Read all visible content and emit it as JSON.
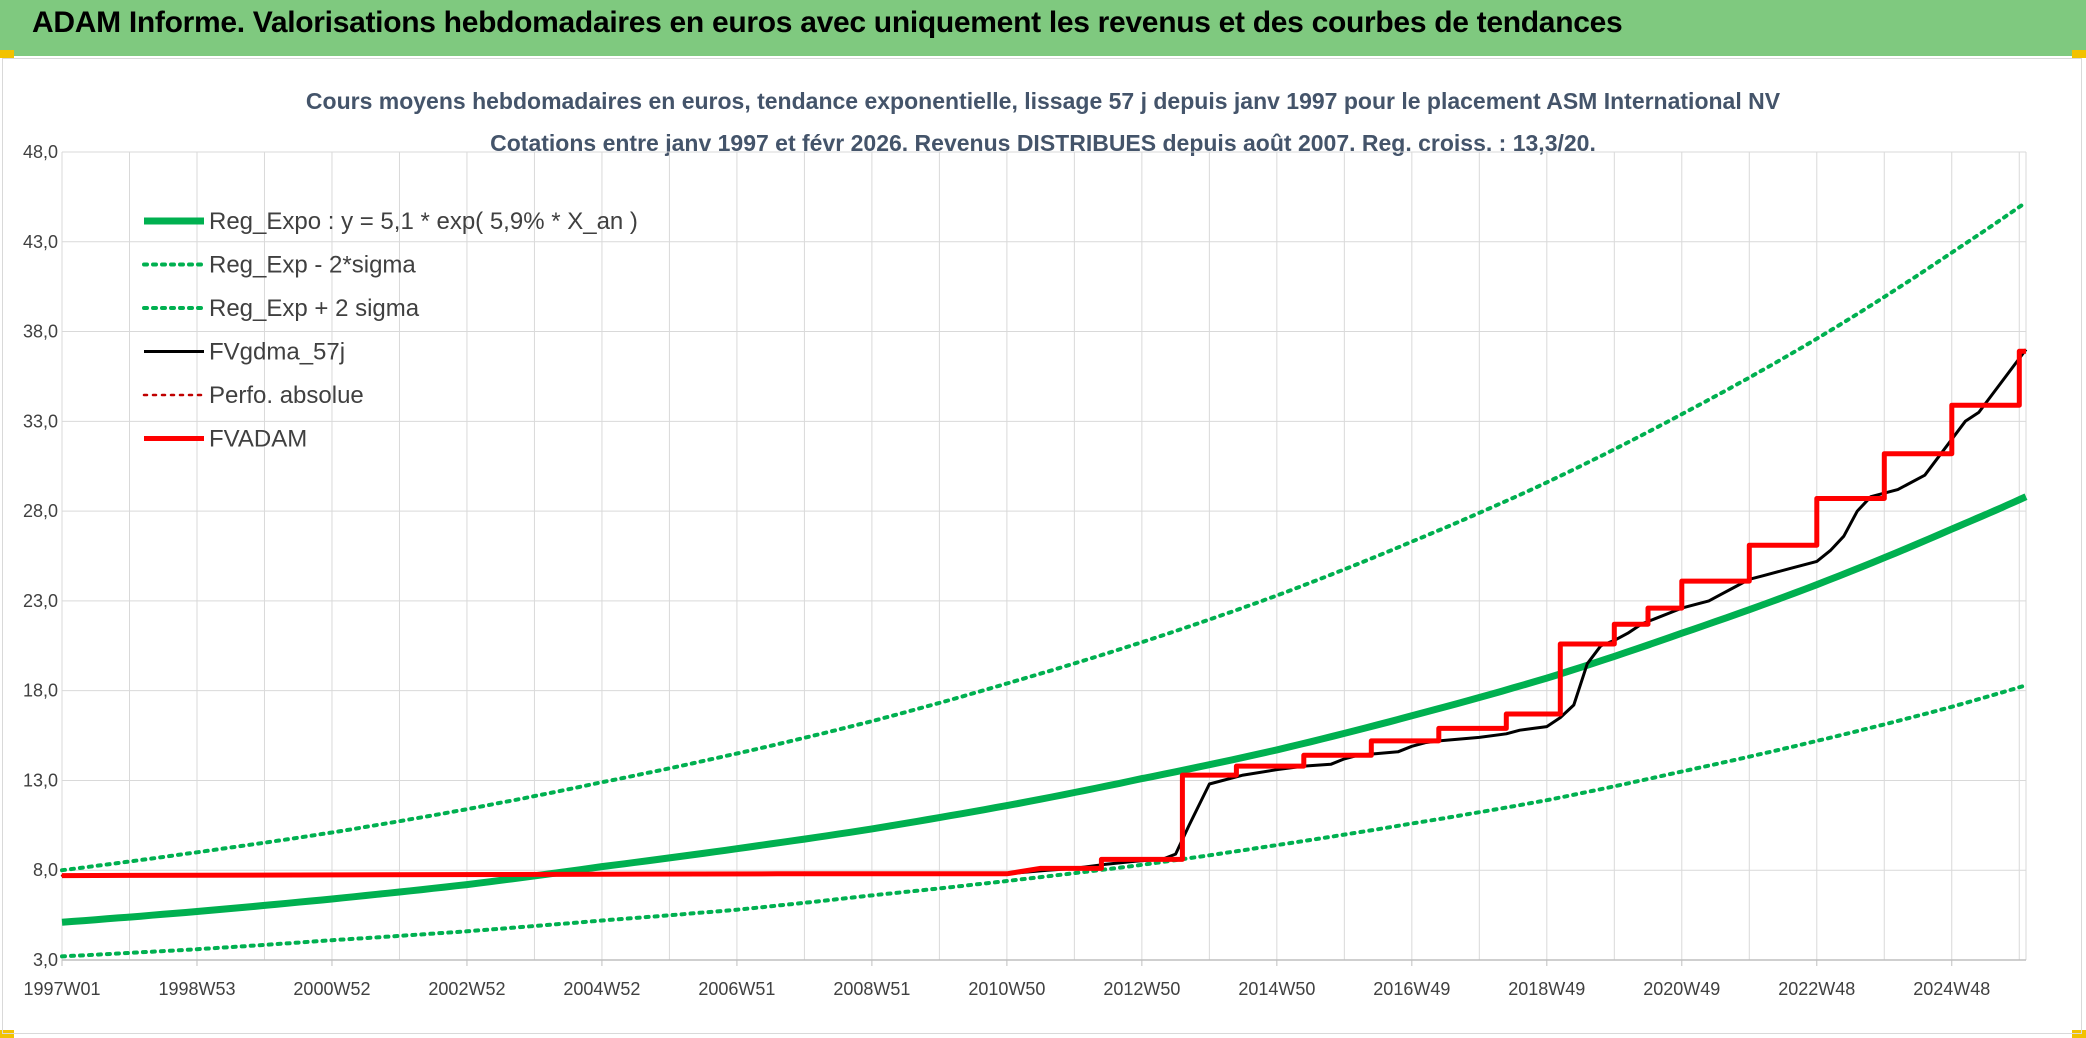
{
  "banner": {
    "title": "ADAM Informe. Valorisations hebdomadaires en euros avec uniquement les revenus et des courbes de tendances"
  },
  "colors": {
    "banner_bg": "#7fc97f",
    "reg_expo": "#00b050",
    "fvgdma": "#000000",
    "fvadam": "#ff0000",
    "perfo": "#c00000",
    "grid": "#d9d9d9",
    "subtitle": "#44546a"
  },
  "chart_data": {
    "type": "line",
    "title_line1": "Cours moyens hebdomadaires en euros, tendance exponentielle, lissage 57 j depuis janv 1997 pour le placement ASM International NV",
    "title_line2": "Cotations entre janv 1997 et févr 2026. Revenus DISTRIBUES depuis août 2007. Reg. croiss. : 13,3/20.",
    "xlabel": "",
    "ylabel": "",
    "x_range_years": [
      0,
      29.1
    ],
    "ylim": [
      3.0,
      48.0
    ],
    "y_ticks": [
      "3,0",
      "8,0",
      "13,0",
      "18,0",
      "23,0",
      "28,0",
      "33,0",
      "38,0",
      "43,0",
      "48,0"
    ],
    "x_ticks": [
      {
        "label": "1997W01",
        "year": 0.0
      },
      {
        "label": "1998W53",
        "year": 2.0
      },
      {
        "label": "2000W52",
        "year": 4.0
      },
      {
        "label": "2002W52",
        "year": 6.0
      },
      {
        "label": "2004W52",
        "year": 8.0
      },
      {
        "label": "2006W51",
        "year": 10.0
      },
      {
        "label": "2008W51",
        "year": 12.0
      },
      {
        "label": "2010W50",
        "year": 14.0
      },
      {
        "label": "2012W50",
        "year": 16.0
      },
      {
        "label": "2014W50",
        "year": 18.0
      },
      {
        "label": "2016W49",
        "year": 20.0
      },
      {
        "label": "2018W49",
        "year": 22.0
      },
      {
        "label": "2020W49",
        "year": 24.0
      },
      {
        "label": "2022W48",
        "year": 26.0
      },
      {
        "label": "2024W48",
        "year": 28.0
      }
    ],
    "series": [
      {
        "name": "Reg_Expo : y = 5,1 * exp( 5,9% *  X_an )",
        "style": "solid-thick",
        "color": "#00b050",
        "x": [
          0,
          2,
          4,
          6,
          8,
          10,
          12,
          14,
          16,
          18,
          20,
          22,
          24,
          26,
          28,
          29.1
        ],
        "y": [
          5.1,
          5.7,
          6.4,
          7.2,
          8.2,
          9.2,
          10.3,
          11.6,
          13.1,
          14.7,
          16.6,
          18.7,
          21.2,
          23.9,
          27.0,
          28.8
        ]
      },
      {
        "name": "Reg_Exp - 2*sigma",
        "style": "dotted",
        "color": "#00b050",
        "x": [
          0,
          2,
          4,
          6,
          8,
          10,
          12,
          14,
          16,
          18,
          20,
          22,
          24,
          26,
          28,
          29.1
        ],
        "y": [
          3.2,
          3.6,
          4.1,
          4.6,
          5.2,
          5.8,
          6.6,
          7.4,
          8.3,
          9.4,
          10.6,
          11.9,
          13.5,
          15.2,
          17.1,
          18.3
        ]
      },
      {
        "name": "Reg_Exp + 2 sigma",
        "style": "dotted",
        "color": "#00b050",
        "x": [
          0,
          2,
          4,
          6,
          8,
          10,
          12,
          14,
          16,
          18,
          20,
          22,
          24,
          26,
          28,
          29.1
        ],
        "y": [
          8.0,
          9.0,
          10.1,
          11.4,
          12.9,
          14.5,
          16.3,
          18.4,
          20.7,
          23.3,
          26.3,
          29.6,
          33.4,
          37.6,
          42.4,
          45.2
        ]
      },
      {
        "name": "FVgdma_57j",
        "style": "solid",
        "color": "#000000",
        "x": [
          0,
          10.6,
          14.0,
          14.6,
          15.0,
          15.4,
          15.9,
          16.3,
          16.5,
          16.7,
          17.0,
          17.5,
          18.0,
          18.4,
          18.8,
          19.0,
          19.2,
          19.5,
          19.8,
          20.0,
          20.2,
          20.4,
          21.0,
          21.4,
          21.6,
          21.8,
          22.0,
          22.2,
          22.4,
          22.6,
          22.8,
          23.0,
          23.2,
          23.4,
          23.6,
          24.0,
          24.4,
          24.6,
          24.8,
          25.0,
          25.2,
          25.6,
          26.0,
          26.2,
          26.4,
          26.6,
          26.8,
          27.2,
          27.6,
          28.2,
          28.4,
          28.6,
          29.1
        ],
        "y": [
          7.7,
          7.8,
          7.8,
          8.0,
          8.1,
          8.3,
          8.5,
          8.6,
          8.9,
          10.5,
          12.8,
          13.3,
          13.6,
          13.8,
          13.9,
          14.2,
          14.4,
          14.5,
          14.6,
          14.9,
          15.1,
          15.2,
          15.4,
          15.6,
          15.8,
          15.9,
          16.0,
          16.5,
          17.2,
          19.5,
          20.5,
          20.8,
          21.2,
          21.7,
          22.0,
          22.6,
          23.0,
          23.4,
          23.8,
          24.2,
          24.4,
          24.8,
          25.2,
          25.8,
          26.6,
          28.0,
          28.8,
          29.2,
          30.0,
          33.0,
          33.5,
          34.5,
          37.0
        ]
      },
      {
        "name": "Perfo. absolue",
        "style": "dotted",
        "color": "#c00000",
        "x": [
          0,
          10.6,
          14.0,
          14.5,
          15.4,
          15.4,
          16.6,
          16.6,
          17.4,
          17.4,
          18.4,
          18.4,
          19.4,
          19.4,
          20.4,
          20.4,
          21.4,
          21.4,
          22.2,
          22.2,
          23.0,
          23.0,
          23.5,
          23.5,
          24.0,
          24.0,
          25.0,
          25.0,
          26.0,
          26.0,
          27.0,
          27.0,
          28.0,
          28.0,
          29.0,
          29.0,
          29.1
        ],
        "y": [
          7.7,
          7.8,
          7.8,
          8.1,
          8.1,
          8.6,
          8.6,
          13.3,
          13.3,
          13.8,
          13.8,
          14.4,
          14.4,
          15.2,
          15.2,
          15.9,
          15.9,
          16.7,
          16.7,
          20.6,
          20.6,
          21.7,
          21.7,
          22.6,
          22.6,
          24.1,
          24.1,
          26.1,
          26.1,
          28.7,
          28.7,
          31.2,
          31.2,
          33.9,
          33.9,
          36.9,
          36.9
        ]
      },
      {
        "name": "FVADAM",
        "style": "solid-thick",
        "color": "#ff0000",
        "x": [
          0,
          10.6,
          14.0,
          14.5,
          15.4,
          15.4,
          16.6,
          16.6,
          17.4,
          17.4,
          18.4,
          18.4,
          19.4,
          19.4,
          20.4,
          20.4,
          21.4,
          21.4,
          22.2,
          22.2,
          23.0,
          23.0,
          23.5,
          23.5,
          24.0,
          24.0,
          25.0,
          25.0,
          26.0,
          26.0,
          27.0,
          27.0,
          28.0,
          28.0,
          29.0,
          29.0,
          29.1
        ],
        "y": [
          7.7,
          7.8,
          7.8,
          8.1,
          8.1,
          8.6,
          8.6,
          13.3,
          13.3,
          13.8,
          13.8,
          14.4,
          14.4,
          15.2,
          15.2,
          15.9,
          15.9,
          16.7,
          16.7,
          20.6,
          20.6,
          21.7,
          21.7,
          22.6,
          22.6,
          24.1,
          24.1,
          26.1,
          26.1,
          28.7,
          28.7,
          31.2,
          31.2,
          33.9,
          33.9,
          36.9,
          36.9
        ]
      }
    ]
  }
}
